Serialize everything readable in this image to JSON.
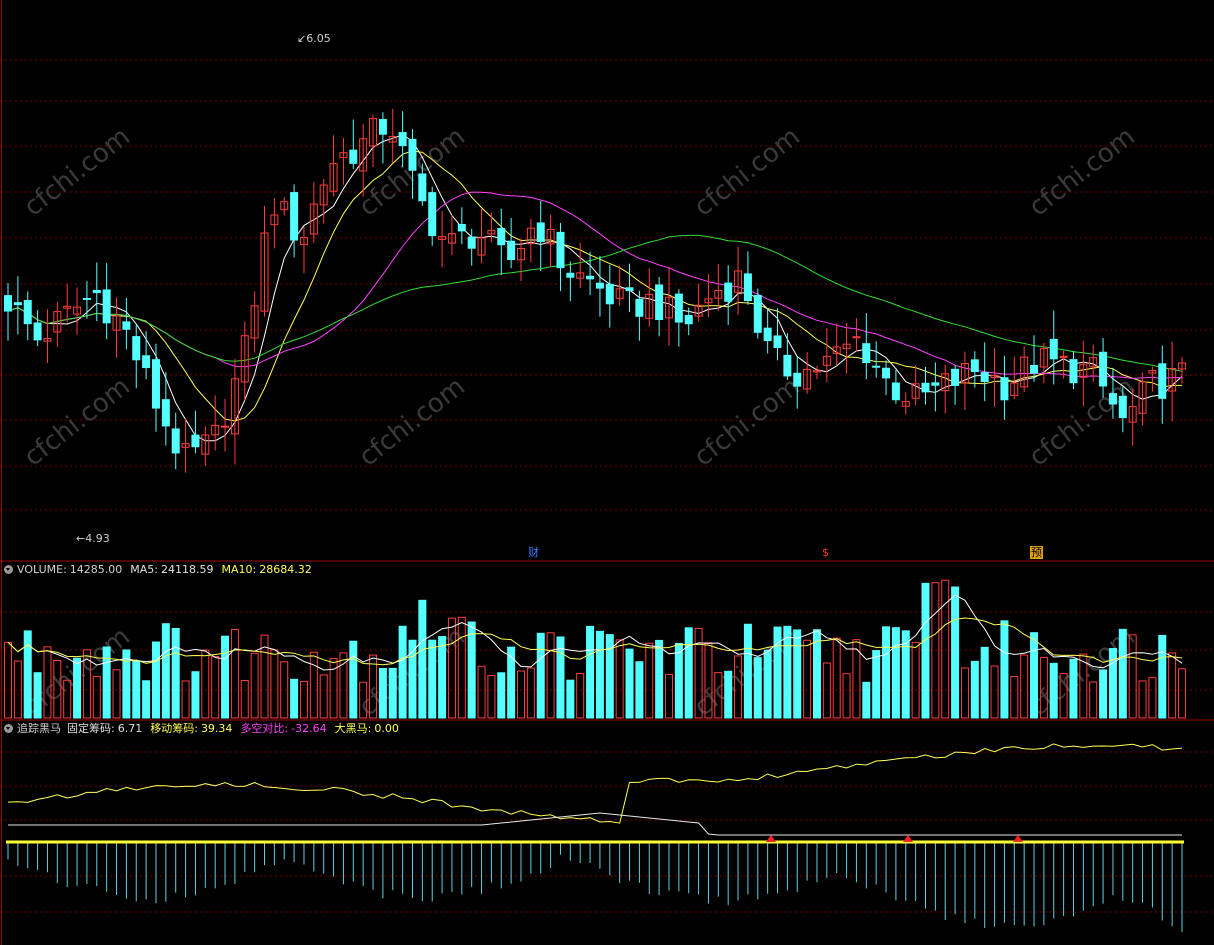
{
  "app": {
    "title_fragment": ""
  },
  "price_panel": {
    "high_label": "6.05",
    "low_label": "4.93",
    "markers": [
      {
        "text": "财",
        "color": "#3a7bff"
      },
      {
        "text": "$",
        "color": "#ff3030"
      },
      {
        "text": "预",
        "color": "#ffcc00"
      }
    ],
    "watermark": "cfchi.com"
  },
  "volume_panel": {
    "name": "VOLUME:",
    "value": "14285.00",
    "ma5_label": "MA5:",
    "ma5_value": "24118.59",
    "ma10_label": "MA10:",
    "ma10_value": "28684.32"
  },
  "indicator_panel": {
    "name": "追踪黑马",
    "fixed_label": "固定筹码:",
    "fixed_value": "6.71",
    "moving_label": "移动筹码:",
    "moving_value": "39.34",
    "ratio_label": "多空对比:",
    "ratio_value": "-32.64",
    "horse_label": "大黑马:",
    "horse_value": "0.00"
  },
  "colors": {
    "up": "#ff3c3c",
    "down": "#54ffff",
    "ma_short": "#ffffff",
    "ma_mid": "#ffff55",
    "ma_long": "#ff40ff",
    "ma_longest": "#33dd33",
    "grid": "#7a0000",
    "separator": "#a00000"
  },
  "chart_data": {
    "type": "candlestick",
    "price_range": [
      4.82,
      6.22
    ],
    "high": 6.05,
    "low": 4.93,
    "close_samples": [
      5.46,
      5.36,
      5.42,
      5.48,
      5.38,
      5.2,
      5.04,
      5.09,
      5.3,
      5.72,
      5.62,
      5.82,
      5.86,
      5.93,
      5.72,
      5.6,
      5.64,
      5.55,
      5.67,
      5.54,
      5.5,
      5.44,
      5.46,
      5.39,
      5.48,
      5.52,
      5.3,
      5.27,
      5.3,
      5.36,
      5.24,
      5.2,
      5.24,
      5.28,
      5.24,
      5.3,
      5.29,
      5.27,
      5.14,
      5.24,
      5.26
    ],
    "volume_last": 14285.0,
    "volume_ma5": 24118.59,
    "volume_ma10": 28684.32
  }
}
